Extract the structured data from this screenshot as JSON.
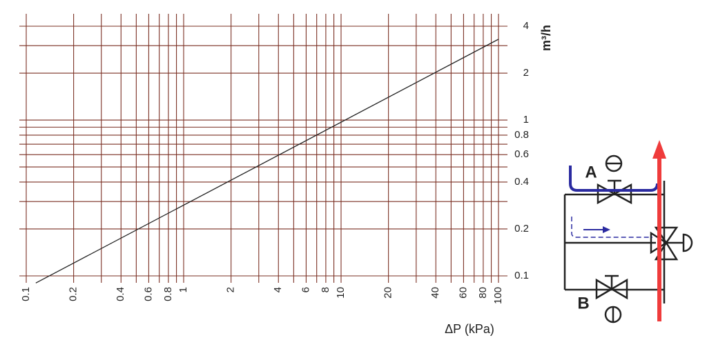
{
  "chart_data": {
    "type": "line",
    "x_label": "ΔP (kPa)",
    "y_label": "m³/h",
    "xscale": "log",
    "yscale": "log",
    "xlim": [
      0.1,
      100
    ],
    "ylim": [
      0.1,
      4
    ],
    "xticks": [
      0.1,
      0.2,
      0.4,
      0.6,
      0.8,
      1,
      2,
      4,
      6,
      8,
      10,
      20,
      40,
      60,
      80,
      100
    ],
    "x_minor_grid": [
      0.3,
      0.5,
      0.7,
      0.9,
      3,
      5,
      7,
      9,
      30,
      50,
      70,
      90
    ],
    "yticks": [
      0.1,
      0.2,
      0.4,
      0.6,
      0.8,
      1,
      2,
      4
    ],
    "y_minor_grid": [
      0.3,
      0.5,
      0.7,
      0.9,
      3
    ],
    "grid": true,
    "grid_color": "#7a2f22",
    "series": [
      {
        "color": "#222222",
        "x": [
          0.115,
          100
        ],
        "values": [
          0.09,
          3.3
        ]
      }
    ]
  },
  "diagram": {
    "labels": [
      "A",
      "B"
    ]
  }
}
